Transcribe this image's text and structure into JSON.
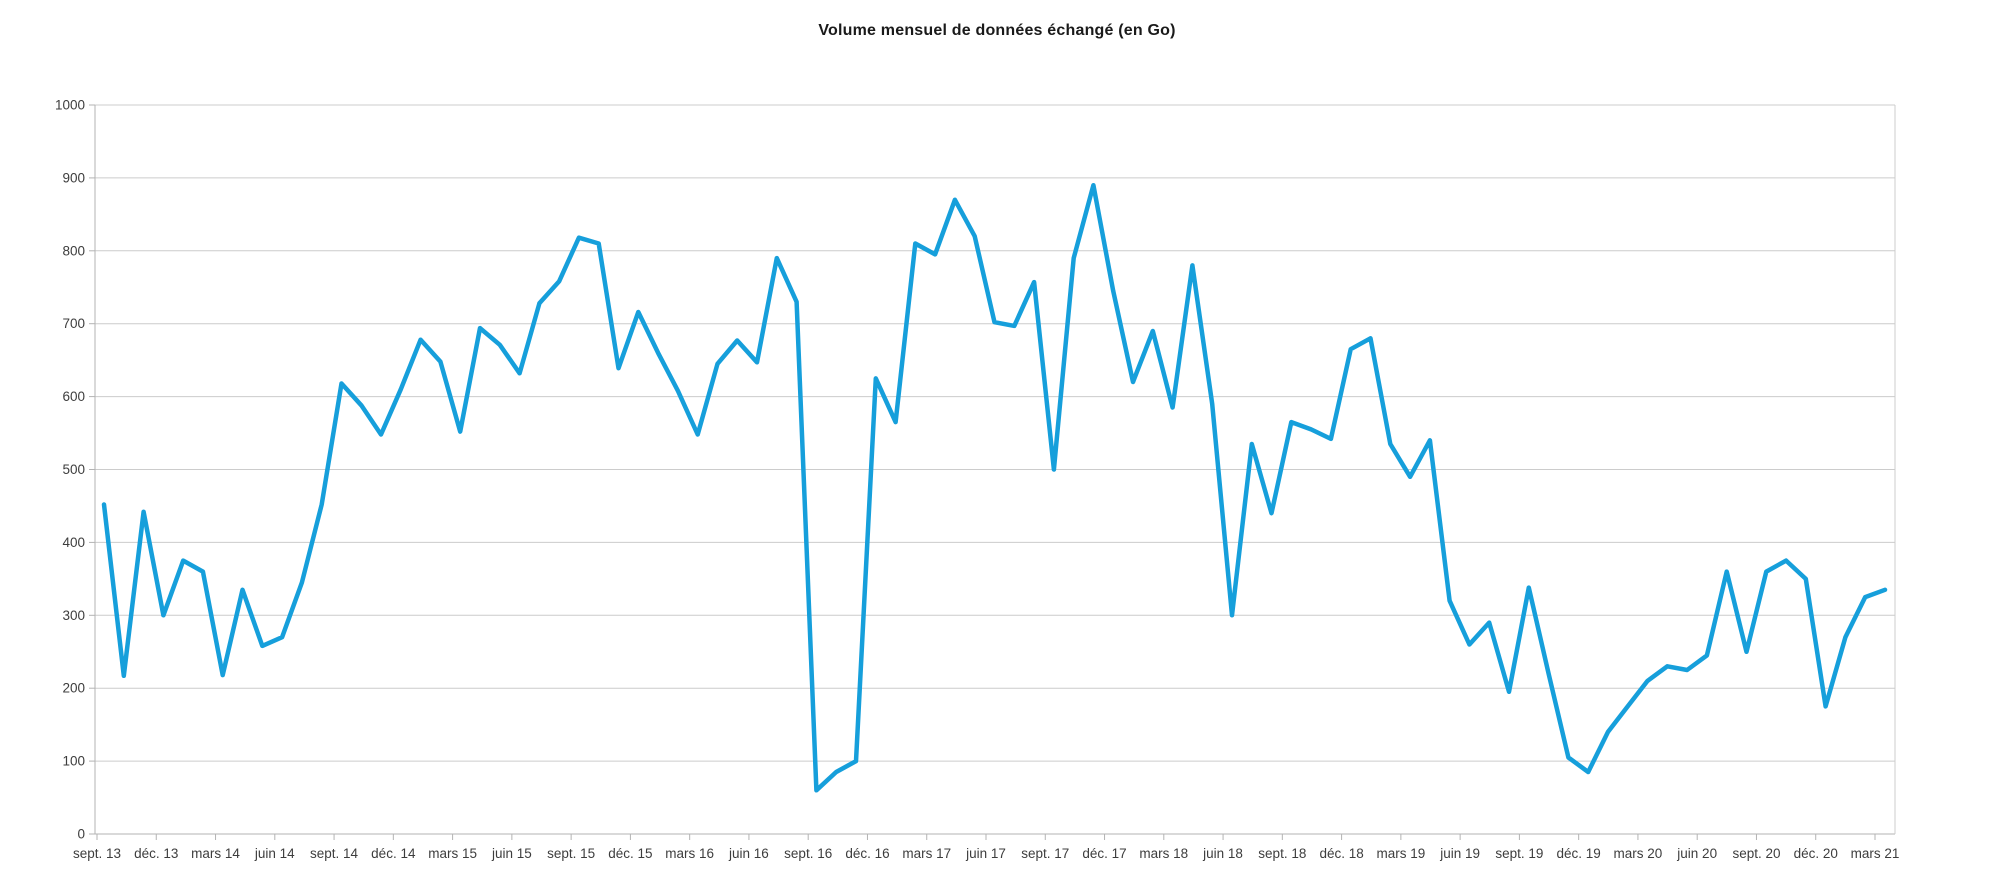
{
  "page": {
    "background_color": "#ffffff"
  },
  "chart_data": {
    "type": "line",
    "title": "Volume mensuel de données échangé (en Go)",
    "xlabel": "",
    "ylabel": "",
    "ylim": [
      0,
      1000
    ],
    "y_ticks": [
      0,
      100,
      200,
      300,
      400,
      500,
      600,
      700,
      800,
      900,
      1000
    ],
    "grid": true,
    "legend": "none",
    "x_start": "sept. 2013",
    "x_end": "mars 2021",
    "x_tick_every_months": 3,
    "x_tick_labels": [
      "sept. 13",
      "déc. 13",
      "mars 14",
      "juin 14",
      "sept. 14",
      "déc. 14",
      "mars 15",
      "juin 15",
      "sept. 15",
      "déc. 15",
      "mars 16",
      "juin 16",
      "sept. 16",
      "déc. 16",
      "mars 17",
      "juin 17",
      "sept. 17",
      "déc. 17",
      "mars 18",
      "juin 18",
      "sept. 18",
      "déc. 18",
      "mars 19",
      "juin 19",
      "sept. 19",
      "déc. 19",
      "mars 20",
      "juin 20",
      "sept. 20",
      "déc. 20",
      "mars 21"
    ],
    "values": [
      452,
      217,
      442,
      300,
      375,
      360,
      218,
      335,
      258,
      270,
      345,
      452,
      618,
      588,
      548,
      610,
      678,
      648,
      552,
      694,
      671,
      632,
      728,
      758,
      818,
      810,
      639,
      716,
      660,
      608,
      548,
      645,
      677,
      647,
      790,
      730,
      60,
      85,
      100,
      625,
      565,
      810,
      795,
      870,
      820,
      702,
      697,
      757,
      500,
      790,
      890,
      745,
      620,
      690,
      585,
      780,
      590,
      300,
      535,
      440,
      565,
      555,
      542,
      665,
      680,
      535,
      490,
      540,
      320,
      260,
      290,
      195,
      338,
      220,
      105,
      85,
      140,
      175,
      210,
      230,
      225,
      245,
      360,
      250,
      360,
      375,
      350,
      175,
      270,
      325,
      335
    ],
    "line_color": "#169fdb",
    "grid_color": "#cccccc",
    "axis_color": "#b3b3b3",
    "tick_label_color": "#3d3d3d",
    "title_color": "#1a1a1a"
  }
}
